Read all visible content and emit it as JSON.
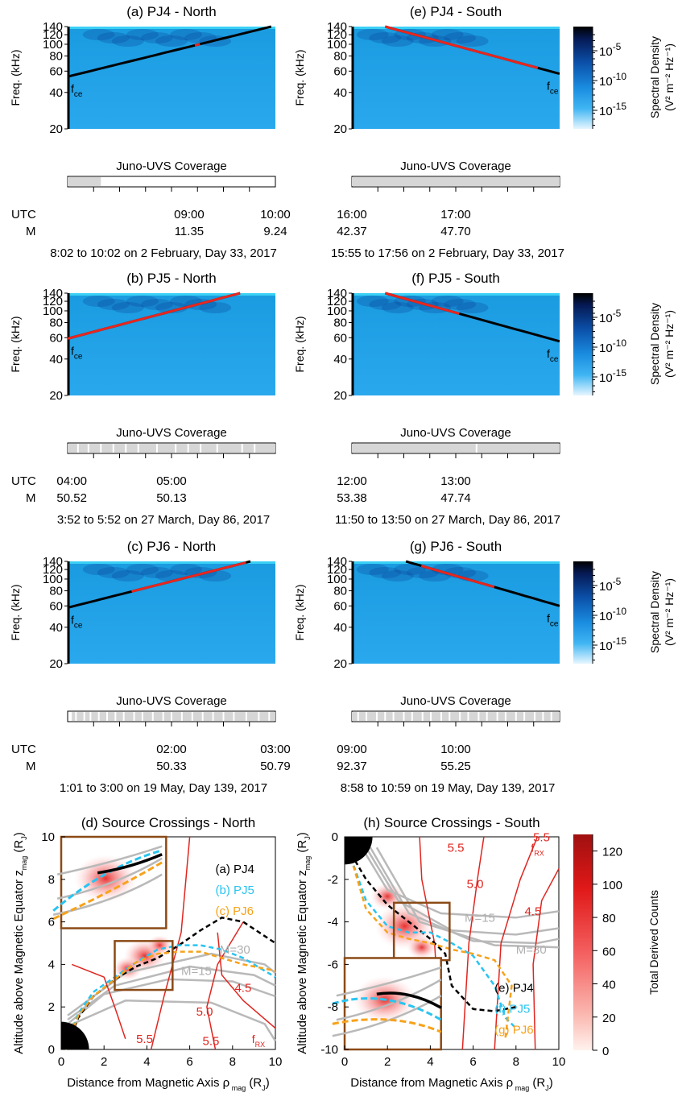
{
  "spectrograms": [
    {
      "title": "(a) PJ4 - North",
      "ylabel": "Freq. (kHz)",
      "fce": "f",
      "fce_sub": "ce",
      "coverage_label": "Juno-UVS Coverage",
      "utc_label": "UTC",
      "m_label": "M",
      "ticks": [
        {
          "frac": 0.585,
          "utc": "09:00",
          "m": "11.35"
        },
        {
          "frac": 1.0,
          "utc": "10:00",
          "m": "9.24"
        }
      ],
      "caption": "8:02 to 10:02 on 2 February, Day 33, 2017",
      "curve": {
        "f_start": 54,
        "f_end": 140,
        "t_end": 0.98,
        "red_from": 0.59,
        "red_to": 0.66,
        "dir": "up"
      },
      "coverage_fill": [
        [
          0,
          0.16
        ]
      ],
      "coverage_lines": [
        0.55,
        0.57,
        0.6,
        0.62,
        0.64,
        0.68,
        0.71,
        0.74,
        0.76,
        0.78,
        0.8,
        0.82,
        0.84
      ]
    },
    {
      "title": "(e) PJ4 - South",
      "ylabel": "Freq. (kHz)",
      "fce": "f",
      "fce_sub": "ce",
      "coverage_label": "Juno-UVS Coverage",
      "utc_label": "",
      "m_label": "",
      "ticks": [
        {
          "frac": 0.0,
          "utc": "16:00",
          "m": "42.37"
        },
        {
          "frac": 0.5,
          "utc": "17:00",
          "m": "47.70"
        }
      ],
      "caption": "15:55 to 17:56 on 2 February, Day 33, 2017",
      "curve": {
        "f_start": 140,
        "f_end": 57,
        "t_start": 0.16,
        "red_from": 0.16,
        "red_to": 0.9,
        "dir": "down"
      },
      "coverage_fill": [
        [
          0,
          1.0
        ]
      ],
      "coverage_lines": []
    },
    {
      "title": "(b) PJ5 - North",
      "ylabel": "Freq. (kHz)",
      "fce": "f",
      "fce_sub": "ce",
      "coverage_label": "Juno-UVS Coverage",
      "utc_label": "UTC",
      "m_label": "M",
      "ticks": [
        {
          "frac": 0.02,
          "utc": "04:00",
          "m": "50.52"
        },
        {
          "frac": 0.5,
          "utc": "05:00",
          "m": "50.13"
        }
      ],
      "caption": "3:52 to 5:52 on 27 March, Day 86, 2017",
      "curve": {
        "f_start": 59,
        "f_end": 140,
        "t_end": 0.83,
        "red_from": 0.0,
        "red_to": 0.83,
        "dir": "up"
      },
      "coverage_fill": [
        [
          0,
          1.0
        ]
      ],
      "coverage_lines": [
        0.05,
        0.1,
        0.16,
        0.22,
        0.28,
        0.34,
        0.43,
        0.52,
        0.58,
        0.64,
        0.72,
        0.84,
        0.9
      ]
    },
    {
      "title": "(f) PJ5 - South",
      "ylabel": "Freq. (kHz)",
      "fce": "f",
      "fce_sub": "ce",
      "coverage_label": "Juno-UVS Coverage",
      "utc_label": "",
      "m_label": "",
      "ticks": [
        {
          "frac": 0.0,
          "utc": "12:00",
          "m": "53.38"
        },
        {
          "frac": 0.5,
          "utc": "13:00",
          "m": "47.74"
        }
      ],
      "caption": "11:50 to 13:50 on 27 March, Day 86, 2017",
      "curve": {
        "f_start": 140,
        "f_end": 56,
        "t_start": 0.16,
        "red_from": 0.16,
        "red_to": 0.52,
        "dir": "down"
      },
      "coverage_fill": [
        [
          0,
          1.0
        ]
      ],
      "coverage_lines": [
        0.6
      ]
    },
    {
      "title": "(c) PJ6 - North",
      "ylabel": "Freq. (kHz)",
      "fce": "f",
      "fce_sub": "ce",
      "coverage_label": "Juno-UVS Coverage",
      "utc_label": "UTC",
      "m_label": "M",
      "ticks": [
        {
          "frac": 0.5,
          "utc": "02:00",
          "m": "50.33"
        },
        {
          "frac": 1.0,
          "utc": "03:00",
          "m": "50.79"
        }
      ],
      "caption": "1:01 to 3:00 on 19 May, Day 139, 2017",
      "curve": {
        "f_start": 58,
        "f_end": 140,
        "t_end": 0.88,
        "red_from": 0.29,
        "red_to": 0.88,
        "dir": "up"
      },
      "coverage_fill": [
        [
          0.02,
          1.0
        ]
      ],
      "coverage_lines": [
        0.04,
        0.08,
        0.11,
        0.15,
        0.19,
        0.23,
        0.27,
        0.32,
        0.36,
        0.41,
        0.46,
        0.5,
        0.55,
        0.6,
        0.65,
        0.7,
        0.75,
        0.8,
        0.86,
        0.92,
        0.97
      ]
    },
    {
      "title": "(g) PJ6 - South",
      "ylabel": "Freq. (kHz)",
      "fce": "f",
      "fce_sub": "ce",
      "coverage_label": "Juno-UVS Coverage",
      "utc_label": "",
      "m_label": "",
      "ticks": [
        {
          "frac": 0.0,
          "utc": "09:00",
          "m": "92.37"
        },
        {
          "frac": 0.5,
          "utc": "10:00",
          "m": "55.25"
        }
      ],
      "caption": "8:58 to 10:59 on 19 May, Day 139, 2017",
      "curve": {
        "f_start": 140,
        "f_end": 60,
        "t_start": 0.26,
        "red_from": 0.33,
        "red_to": 0.7,
        "dir": "down"
      },
      "coverage_fill": [
        [
          0,
          1.0
        ]
      ],
      "coverage_lines": [
        0.03,
        0.07,
        0.12,
        0.16,
        0.2,
        0.25,
        0.29,
        0.34,
        0.38,
        0.43,
        0.47,
        0.52,
        0.56,
        0.61,
        0.65,
        0.7,
        0.74,
        0.79,
        0.83,
        0.88,
        0.92,
        0.96
      ]
    }
  ],
  "spectro_yticks": [
    20,
    40,
    60,
    80,
    100,
    120,
    140
  ],
  "colorbar_spectral": {
    "label": "Spectral Density",
    "units": "(V² m⁻² Hz⁻¹)",
    "ticks": [
      {
        "base": "10",
        "exp": "-5"
      },
      {
        "base": "10",
        "exp": "-10"
      },
      {
        "base": "10",
        "exp": "-15"
      }
    ]
  },
  "colorbar_counts": {
    "label": "Total Derived Counts",
    "ticks": [
      "120",
      "100",
      "80",
      "60",
      "40",
      "20",
      "0"
    ],
    "range": [
      0,
      130
    ]
  },
  "north_panel": {
    "title": "(d) Source Crossings - North",
    "xlabel": "Distance from Magnetic Axis ρ",
    "xlabel_sub": "mag",
    "xlabel_unit": "(R",
    "ylabel": "Altitude above Magnetic Equator z",
    "ylabel_sub": "mag",
    "xticks": [
      "0",
      "2",
      "4",
      "6",
      "8",
      "10"
    ],
    "yticks": [
      "0",
      "2",
      "4",
      "6",
      "8",
      "10"
    ],
    "legend": [
      {
        "text": "(a) PJ4",
        "color": "#000000"
      },
      {
        "text": "(b) PJ5",
        "color": "#29c4f0"
      },
      {
        "text": "(c) PJ6",
        "color": "#f7a21b"
      }
    ],
    "contour_labels": [
      "5.5",
      "5.0",
      "4.5",
      "5.5"
    ],
    "frx": "f",
    "frx_sub": "RX",
    "m_labels": [
      "M=30",
      "M=15"
    ]
  },
  "south_panel": {
    "title": "(h) Source Crossings - South",
    "xlabel": "Distance from Magnetic Axis ρ",
    "xlabel_sub": "mag",
    "xlabel_unit": "(R",
    "ylabel": "Altitude above Magnetic Equator z",
    "ylabel_sub": "mag",
    "xticks": [
      "0",
      "2",
      "4",
      "6",
      "8",
      "10"
    ],
    "yticks": [
      "0",
      "-2",
      "-4",
      "-6",
      "-8",
      "-10"
    ],
    "legend": [
      {
        "text": "(e) PJ4",
        "color": "#000000"
      },
      {
        "text": "(f) PJ5",
        "color": "#29c4f0"
      },
      {
        "text": "(g) PJ6",
        "color": "#f7a21b"
      }
    ],
    "contour_labels": [
      "5.5",
      "5.5",
      "5.0",
      "4.5"
    ],
    "frx": "f",
    "frx_sub": "RX",
    "m_labels": [
      "M=15",
      "M=30"
    ]
  },
  "rj": "J",
  "chart_data": [
    {
      "type": "heatmap",
      "title": "(a) PJ4 - North",
      "ylabel": "Freq. (kHz)",
      "ylim": [
        20,
        140
      ],
      "fce_curve_kHz": [
        54,
        140
      ]
    },
    {
      "type": "heatmap",
      "title": "(e) PJ4 - South",
      "ylabel": "Freq. (kHz)",
      "ylim": [
        20,
        140
      ],
      "fce_curve_kHz": [
        140,
        57
      ]
    },
    {
      "type": "heatmap",
      "title": "(b) PJ5 - North",
      "ylabel": "Freq. (kHz)",
      "ylim": [
        20,
        140
      ],
      "fce_curve_kHz": [
        59,
        140
      ]
    },
    {
      "type": "heatmap",
      "title": "(f) PJ5 - South",
      "ylabel": "Freq. (kHz)",
      "ylim": [
        20,
        140
      ],
      "fce_curve_kHz": [
        140,
        56
      ]
    },
    {
      "type": "heatmap",
      "title": "(c) PJ6 - North",
      "ylabel": "Freq. (kHz)",
      "ylim": [
        20,
        140
      ],
      "fce_curve_kHz": [
        58,
        140
      ]
    },
    {
      "type": "heatmap",
      "title": "(g) PJ6 - South",
      "ylabel": "Freq. (kHz)",
      "ylim": [
        20,
        140
      ],
      "fce_curve_kHz": [
        140,
        60
      ]
    },
    {
      "type": "line",
      "title": "(d) Source Crossings - North",
      "xlim": [
        0,
        10
      ],
      "ylim": [
        0,
        10
      ],
      "series": [
        {
          "name": "(a) PJ4",
          "x": [
            0.2,
            0.8,
            1.5,
            2.5,
            3.5,
            4.5,
            5.5,
            6.5,
            7.5,
            8.5,
            10
          ],
          "y": [
            0,
            1.5,
            2.5,
            3.3,
            3.9,
            4.3,
            4.9,
            5.6,
            6.2,
            6.0,
            5.0
          ]
        },
        {
          "name": "(b) PJ5",
          "x": [
            0.2,
            0.8,
            1.5,
            2.5,
            3.5,
            4.5,
            5.5,
            6.5,
            7.5,
            8.5,
            10
          ],
          "y": [
            0,
            1.7,
            2.7,
            3.4,
            4.1,
            4.7,
            4.9,
            4.9,
            4.7,
            4.3,
            3.4
          ]
        },
        {
          "name": "(c) PJ6",
          "x": [
            0.2,
            0.8,
            1.5,
            2.5,
            3.5,
            4.5,
            5.5,
            6.5,
            7.5,
            8.5,
            10
          ],
          "y": [
            0,
            1.6,
            2.5,
            3.3,
            4.1,
            4.5,
            4.6,
            4.6,
            4.3,
            4.0,
            3.7
          ]
        }
      ]
    },
    {
      "type": "line",
      "title": "(h) Source Crossings - South",
      "xlim": [
        0,
        10
      ],
      "ylim": [
        -10,
        0
      ],
      "series": [
        {
          "name": "(e) PJ4",
          "x": [
            0.3,
            1.0,
            2.0,
            3.0,
            4.0,
            4.7,
            5.0,
            6.0,
            7.0,
            8.0
          ],
          "y": [
            -0.8,
            -2.0,
            -3.2,
            -4.0,
            -4.8,
            -5.5,
            -7.0,
            -8.1,
            -8.2,
            -8.0
          ]
        },
        {
          "name": "(f) PJ5",
          "x": [
            0.3,
            1.0,
            2.0,
            3.0,
            4.0,
            5.0,
            6.0,
            7.0,
            7.5,
            8.0
          ],
          "y": [
            -1.0,
            -3.0,
            -4.2,
            -4.5,
            -4.5,
            -5.0,
            -5.6,
            -7.0,
            -8.5,
            -9.0
          ]
        },
        {
          "name": "(g) PJ6",
          "x": [
            0.3,
            1.0,
            2.0,
            3.0,
            4.0,
            5.0,
            6.0,
            7.0,
            7.8,
            7.5
          ],
          "y": [
            -1.0,
            -3.4,
            -4.5,
            -4.8,
            -5.0,
            -5.3,
            -5.5,
            -5.8,
            -7.0,
            -9.5
          ]
        }
      ]
    }
  ]
}
